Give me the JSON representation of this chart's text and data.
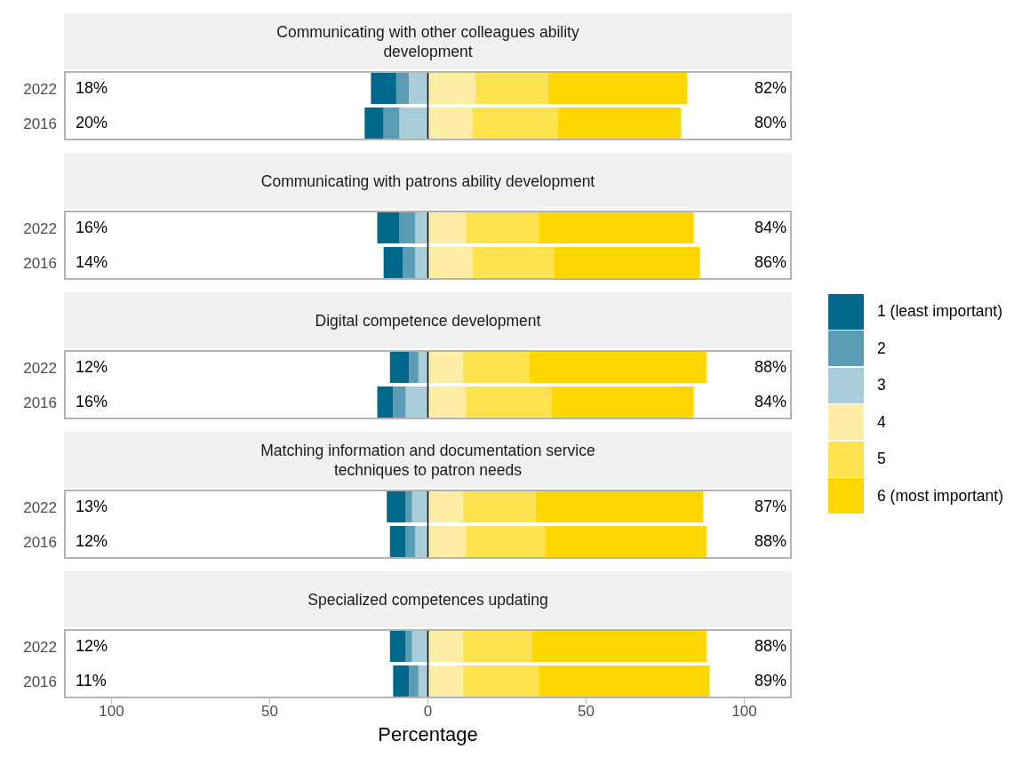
{
  "chart_data": [
    {
      "type": "bar",
      "orientation": "horizontal",
      "stacked": true,
      "title": "Communicating with other colleagues ability\ndevelopment",
      "categories": [
        "2022",
        "2016"
      ],
      "series": [
        {
          "name": "1 (least important)",
          "color": "#00688b",
          "values": [
            -8,
            -6
          ]
        },
        {
          "name": "2",
          "color": "#5b9cb5",
          "values": [
            -4,
            -5
          ]
        },
        {
          "name": "3",
          "color": "#a8ccd8",
          "values": [
            -6,
            -9
          ]
        },
        {
          "name": "4",
          "color": "#feeda5",
          "values": [
            15,
            14
          ]
        },
        {
          "name": "5",
          "color": "#fee24f",
          "values": [
            23,
            27
          ]
        },
        {
          "name": "6 (most important)",
          "color": "#ffd700",
          "values": [
            44,
            39
          ]
        }
      ],
      "totals": [
        [
          "18%",
          "82%"
        ],
        [
          "20%",
          "80%"
        ]
      ],
      "xlim": [
        -115,
        115
      ],
      "tick_labels": "y",
      "ref_lines": [
        {
          "axis": "x",
          "value": 0,
          "color": "#000000"
        }
      ],
      "legend": "right"
    },
    {
      "type": "bar",
      "orientation": "horizontal",
      "stacked": true,
      "title": "Communicating with patrons ability development",
      "categories": [
        "2022",
        "2016"
      ],
      "series": [
        {
          "color": "#00688b",
          "values": [
            -7,
            -6
          ]
        },
        {
          "color": "#5b9cb5",
          "values": [
            -5,
            -4
          ]
        },
        {
          "color": "#a8ccd8",
          "values": [
            -4,
            -4
          ]
        },
        {
          "color": "#feeda5",
          "values": [
            12,
            14
          ]
        },
        {
          "color": "#fee24f",
          "values": [
            23,
            26
          ]
        },
        {
          "color": "#ffd700",
          "values": [
            49,
            46
          ]
        }
      ],
      "totals": [
        [
          "16%",
          "84%"
        ],
        [
          "14%",
          "86%"
        ]
      ],
      "xlim": [
        -115,
        115
      ],
      "tick_labels": "y",
      "ref_lines": [
        {
          "axis": "x",
          "value": 0,
          "color": "#000000"
        }
      ]
    },
    {
      "type": "bar",
      "orientation": "horizontal",
      "stacked": true,
      "title": "Digital competence development",
      "categories": [
        "2022",
        "2016"
      ],
      "series": [
        {
          "color": "#00688b",
          "values": [
            -6,
            -5
          ]
        },
        {
          "color": "#5b9cb5",
          "values": [
            -3,
            -4
          ]
        },
        {
          "color": "#a8ccd8",
          "values": [
            -3,
            -7
          ]
        },
        {
          "color": "#feeda5",
          "values": [
            11,
            12
          ]
        },
        {
          "color": "#fee24f",
          "values": [
            21,
            27
          ]
        },
        {
          "color": "#ffd700",
          "values": [
            56,
            45
          ]
        }
      ],
      "totals": [
        [
          "12%",
          "88%"
        ],
        [
          "16%",
          "84%"
        ]
      ],
      "xlim": [
        -115,
        115
      ],
      "tick_labels": "y",
      "ref_lines": [
        {
          "axis": "x",
          "value": 0,
          "color": "#000000"
        }
      ]
    },
    {
      "type": "bar",
      "orientation": "horizontal",
      "stacked": true,
      "title": "Matching information and documentation service\ntechniques to patron needs",
      "categories": [
        "2022",
        "2016"
      ],
      "series": [
        {
          "color": "#00688b",
          "values": [
            -6,
            -5
          ]
        },
        {
          "color": "#5b9cb5",
          "values": [
            -2,
            -3
          ]
        },
        {
          "color": "#a8ccd8",
          "values": [
            -5,
            -4
          ]
        },
        {
          "color": "#feeda5",
          "values": [
            11,
            12
          ]
        },
        {
          "color": "#fee24f",
          "values": [
            23,
            25
          ]
        },
        {
          "color": "#ffd700",
          "values": [
            53,
            51
          ]
        }
      ],
      "totals": [
        [
          "13%",
          "87%"
        ],
        [
          "12%",
          "88%"
        ]
      ],
      "xlim": [
        -115,
        115
      ],
      "tick_labels": "y",
      "ref_lines": [
        {
          "axis": "x",
          "value": 0,
          "color": "#000000"
        }
      ]
    },
    {
      "type": "bar",
      "orientation": "horizontal",
      "stacked": true,
      "title": "Specialized competences updating",
      "xlabel": "Percentage",
      "categories": [
        "2022",
        "2016"
      ],
      "series": [
        {
          "color": "#00688b",
          "values": [
            -5,
            -5
          ]
        },
        {
          "color": "#5b9cb5",
          "values": [
            -2,
            -3
          ]
        },
        {
          "color": "#a8ccd8",
          "values": [
            -5,
            -3
          ]
        },
        {
          "color": "#feeda5",
          "values": [
            11,
            11
          ]
        },
        {
          "color": "#fee24f",
          "values": [
            22,
            24
          ]
        },
        {
          "color": "#ffd700",
          "values": [
            55,
            54
          ]
        }
      ],
      "totals": [
        [
          "12%",
          "88%"
        ],
        [
          "11%",
          "89%"
        ]
      ],
      "xlim": [
        -115,
        115
      ],
      "xticks": [
        {
          "value": -100,
          "label": "100"
        },
        {
          "value": -50,
          "label": "50"
        },
        0,
        50,
        100
      ],
      "ref_lines": [
        {
          "axis": "x",
          "value": 0,
          "color": "#000000"
        }
      ]
    }
  ]
}
